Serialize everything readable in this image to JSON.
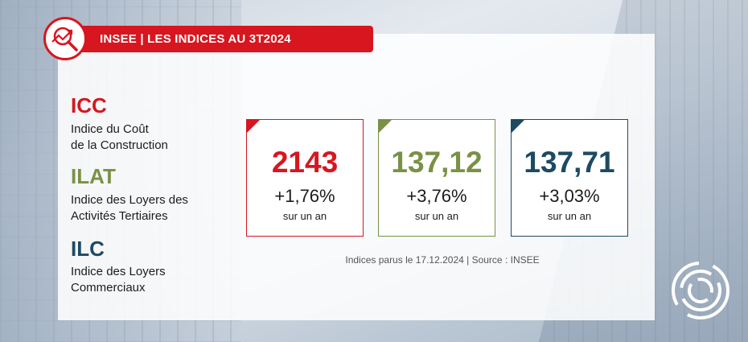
{
  "banner": {
    "title": "INSEE | LES INDICES AU 3T2024"
  },
  "indices": [
    {
      "code": "ICC",
      "desc_line1": "Indice du Coût",
      "desc_line2": "de la Construction",
      "color": "#d7161f"
    },
    {
      "code": "ILAT",
      "desc_line1": "Indice des Loyers des",
      "desc_line2": "Activités Tertiaires",
      "color": "#7a9146"
    },
    {
      "code": "ILC",
      "desc_line1": "Indice des Loyers",
      "desc_line2": "Commerciaux",
      "color": "#1d4a63"
    }
  ],
  "cards": [
    {
      "value": "2143",
      "change": "+1,76%",
      "period": "sur un an",
      "color": "#d7161f"
    },
    {
      "value": "137,12",
      "change": "+3,76%",
      "period": "sur un an",
      "color": "#7a9146"
    },
    {
      "value": "137,71",
      "change": "+3,03%",
      "period": "sur un an",
      "color": "#1d4a63"
    }
  ],
  "source": "Indices parus le 17.12.2024 | Source : INSEE",
  "icons": {
    "logo": "chart-magnifier-icon",
    "brand": "swirl-logo-icon"
  }
}
